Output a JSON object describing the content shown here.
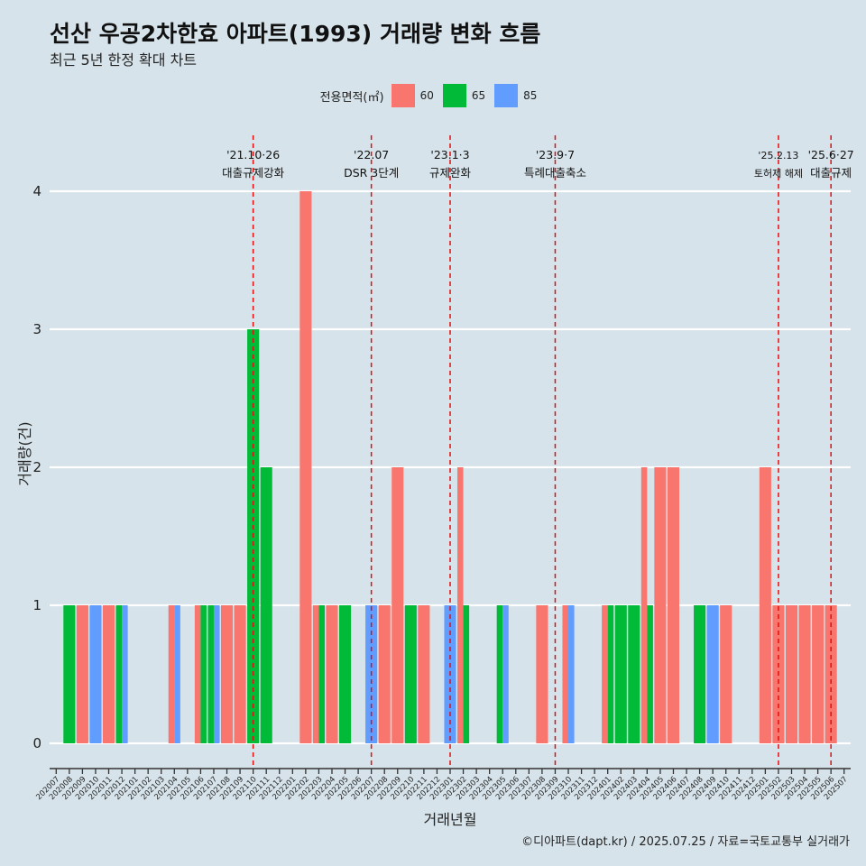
{
  "chart_data": {
    "type": "bar",
    "title": "선산 우공2차한효 아파트(1993) 거래량 변화 흐름",
    "subtitle": "최근 5년 한정 확대 차트",
    "xlabel": "거래년월",
    "ylabel": "거래량(건)",
    "caption": "©디아파트(dapt.kr) / 2025.07.25 / 자료=국토교통부 실거래가",
    "ylim": [
      0,
      4
    ],
    "yticks": [
      "0",
      "1",
      "2",
      "3",
      "4"
    ],
    "legend": {
      "title": "전용면적(㎡)",
      "position": "top",
      "items": [
        {
          "name": "60",
          "color": "#F8766D"
        },
        {
          "name": "65",
          "color": "#00BA38"
        },
        {
          "name": "85",
          "color": "#619CFF"
        }
      ]
    },
    "categories": [
      "202007",
      "202008",
      "202009",
      "202010",
      "202011",
      "202012",
      "202101",
      "202102",
      "202103",
      "202104",
      "202105",
      "202106",
      "202107",
      "202108",
      "202109",
      "202110",
      "202111",
      "202112",
      "202201",
      "202202",
      "202203",
      "202204",
      "202205",
      "202206",
      "202207",
      "202208",
      "202209",
      "202210",
      "202211",
      "202212",
      "202301",
      "202302",
      "202303",
      "202304",
      "202305",
      "202306",
      "202307",
      "202308",
      "202309",
      "202310",
      "202311",
      "202312",
      "202401",
      "202402",
      "202403",
      "202404",
      "202405",
      "202406",
      "202407",
      "202408",
      "202409",
      "202410",
      "202411",
      "202412",
      "202501",
      "202502",
      "202503",
      "202504",
      "202505",
      "202506",
      "202507"
    ],
    "series": [
      {
        "name": "60",
        "color": "#F8766D",
        "values": [
          0,
          0,
          1,
          0,
          1,
          0,
          0,
          0,
          0,
          1,
          0,
          1,
          0,
          1,
          1,
          0,
          0,
          0,
          0,
          4,
          1,
          1,
          0,
          0,
          0,
          1,
          2,
          0,
          1,
          0,
          0,
          2,
          0,
          0,
          0,
          0,
          0,
          1,
          0,
          1,
          0,
          0,
          1,
          0,
          0,
          2,
          2,
          2,
          0,
          0,
          0,
          1,
          0,
          0,
          2,
          1,
          1,
          1,
          1,
          1,
          0
        ]
      },
      {
        "name": "65",
        "color": "#00BA38",
        "values": [
          0,
          1,
          0,
          0,
          0,
          1,
          0,
          0,
          0,
          0,
          0,
          1,
          1,
          0,
          0,
          3,
          2,
          0,
          0,
          0,
          1,
          0,
          1,
          0,
          0,
          0,
          0,
          1,
          0,
          0,
          0,
          1,
          0,
          0,
          1,
          0,
          0,
          0,
          0,
          0,
          0,
          0,
          1,
          1,
          1,
          1,
          0,
          0,
          0,
          1,
          0,
          0,
          0,
          0,
          0,
          0,
          0,
          0,
          0,
          0,
          0
        ]
      },
      {
        "name": "85",
        "color": "#619CFF",
        "values": [
          0,
          0,
          0,
          1,
          0,
          1,
          0,
          0,
          0,
          1,
          0,
          0,
          1,
          0,
          0,
          0,
          0,
          0,
          0,
          0,
          0,
          0,
          0,
          0,
          1,
          0,
          0,
          0,
          0,
          0,
          1,
          0,
          0,
          0,
          1,
          0,
          0,
          0,
          0,
          1,
          0,
          0,
          0,
          0,
          0,
          0,
          0,
          0,
          0,
          0,
          1,
          0,
          0,
          0,
          0,
          0,
          0,
          0,
          0,
          0,
          0
        ]
      }
    ],
    "annotations": [
      {
        "x": "202110",
        "line1": "'21.10·26",
        "line2": "대출규제강화"
      },
      {
        "x": "202207",
        "line1": "'22.07",
        "line2": "DSR 3단계"
      },
      {
        "x": "202301",
        "line1": "'23.1·3",
        "line2": "규제완화"
      },
      {
        "x": "202309",
        "line1": "'23.9·7",
        "line2": "특례대출축소"
      },
      {
        "x": "202502",
        "line1": "'25.2.13",
        "line2": "토허제 해제"
      },
      {
        "x": "202506",
        "line1": "'25.6·27",
        "line2": "대출규제"
      }
    ]
  }
}
